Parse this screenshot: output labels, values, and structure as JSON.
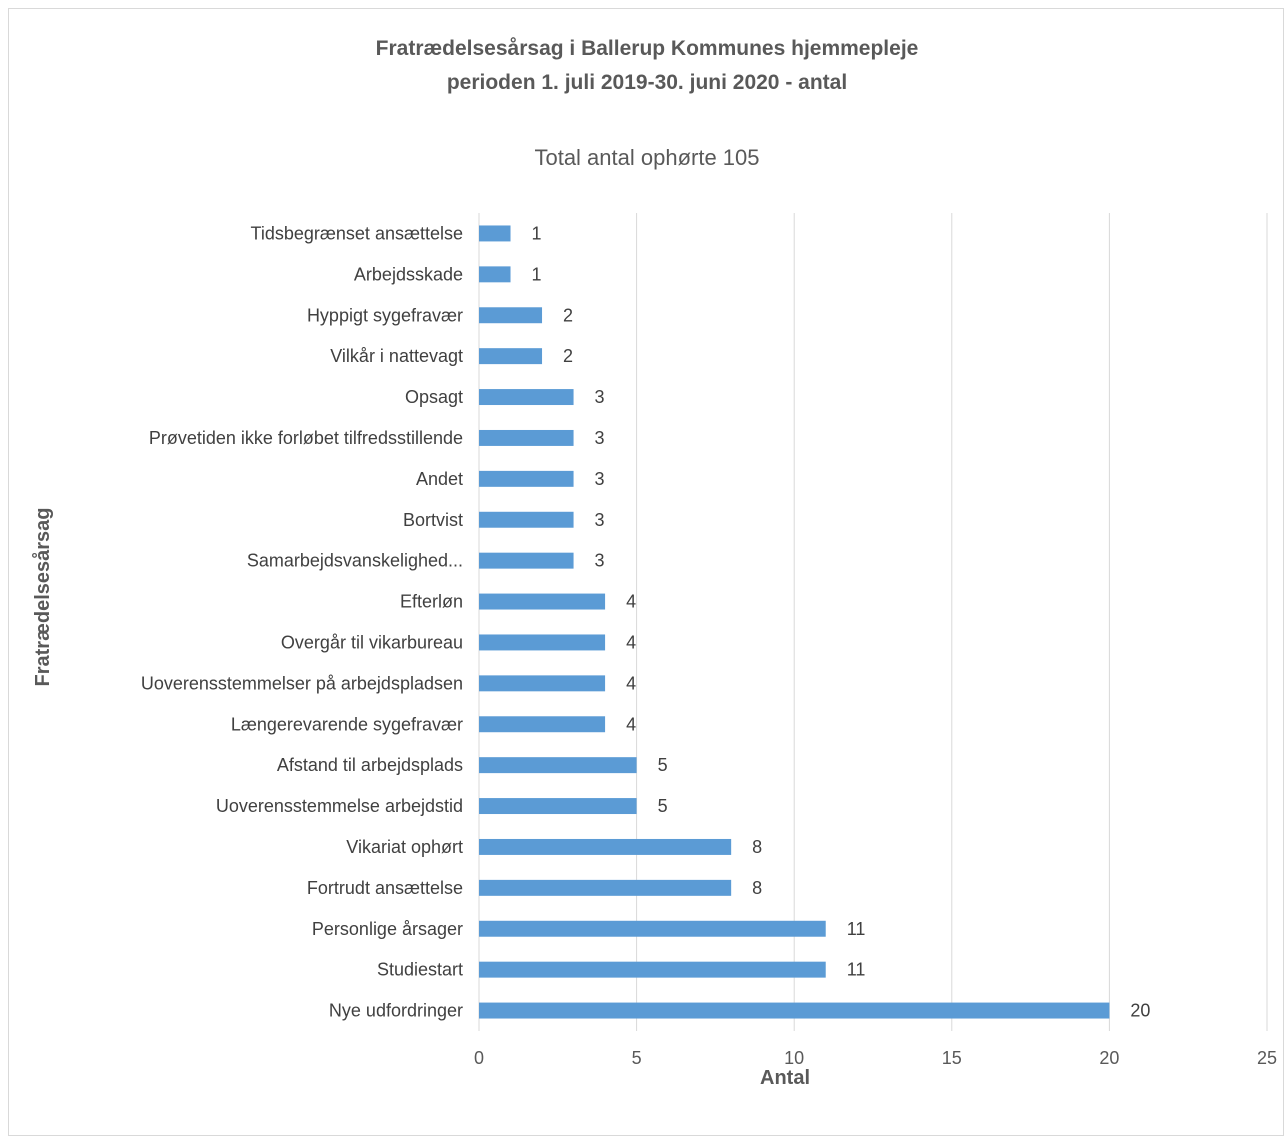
{
  "chart_data": {
    "type": "bar",
    "orientation": "horizontal",
    "title_line1": "Fratrædelsesårsag i Ballerup Kommunes hjemmepleje",
    "title_line2": "perioden 1. juli 2019-30. juni 2020 - antal",
    "subtitle": "Total antal ophørte 105",
    "xlabel": "Antal",
    "ylabel": "Fratrædelsesårsag",
    "xlim": [
      0,
      25
    ],
    "xticks": [
      0,
      5,
      10,
      15,
      20,
      25
    ],
    "grid": true,
    "bar_color": "#5b9bd5",
    "categories": [
      "Tidsbegrænset ansættelse",
      "Arbejdsskade",
      "Hyppigt sygefravær",
      "Vilkår i nattevagt",
      "Opsagt",
      "Prøvetiden ikke forløbet tilfredsstillende",
      "Andet",
      "Bortvist",
      "Samarbejdsvanskelighed...",
      "Efterløn",
      "Overgår til vikarbureau",
      "Uoverensstemmelser på arbejdspladsen",
      "Længerevarende sygefravær",
      "Afstand til arbejdsplads",
      "Uoverensstemmelse arbejdstid",
      "Vikariat ophørt",
      "Fortrudt ansættelse",
      "Personlige årsager",
      "Studiestart",
      "Nye udfordringer"
    ],
    "values": [
      1,
      1,
      2,
      2,
      3,
      3,
      3,
      3,
      3,
      4,
      4,
      4,
      4,
      5,
      5,
      8,
      8,
      11,
      11,
      20
    ]
  }
}
